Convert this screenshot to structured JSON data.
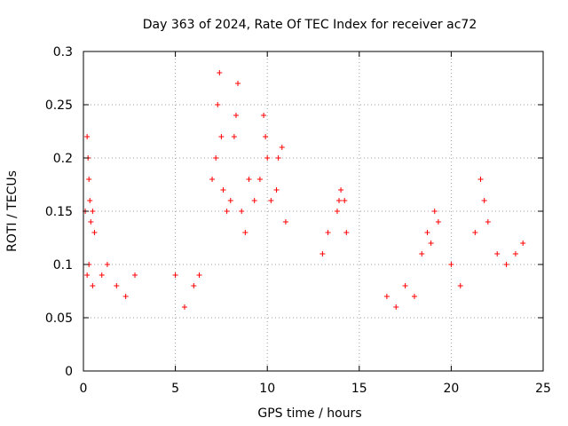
{
  "chart_data": {
    "type": "scatter",
    "title": "Day 363 of 2024, Rate Of TEC Index for receiver ac72",
    "xlabel": "GPS time / hours",
    "ylabel": "ROTI / TECUs",
    "xlim": [
      0,
      25
    ],
    "ylim": [
      0,
      0.3
    ],
    "x_ticks": [
      0,
      5,
      10,
      15,
      20,
      25
    ],
    "y_ticks": [
      0,
      0.05,
      0.1,
      0.15,
      0.2,
      0.25,
      0.3
    ],
    "x_tick_labels": [
      "0",
      "5",
      "10",
      "15",
      "20",
      "25"
    ],
    "y_tick_labels": [
      "0",
      "0.05",
      "0.1",
      "0.15",
      "0.2",
      "0.25",
      "0.3"
    ],
    "grid": true,
    "marker": "plus",
    "color": "#ff0000",
    "series": [
      {
        "points": [
          [
            0.1,
            0.15
          ],
          [
            0.2,
            0.22
          ],
          [
            0.25,
            0.2
          ],
          [
            0.3,
            0.18
          ],
          [
            0.35,
            0.16
          ],
          [
            0.4,
            0.14
          ],
          [
            0.5,
            0.15
          ],
          [
            0.6,
            0.13
          ],
          [
            0.3,
            0.1
          ],
          [
            0.2,
            0.09
          ],
          [
            0.5,
            0.08
          ],
          [
            1.0,
            0.09
          ],
          [
            1.3,
            0.1
          ],
          [
            1.8,
            0.08
          ],
          [
            2.3,
            0.07
          ],
          [
            2.8,
            0.09
          ],
          [
            5.0,
            0.09
          ],
          [
            5.5,
            0.06
          ],
          [
            6.0,
            0.08
          ],
          [
            6.3,
            0.09
          ],
          [
            7.0,
            0.18
          ],
          [
            7.2,
            0.2
          ],
          [
            7.3,
            0.25
          ],
          [
            7.4,
            0.28
          ],
          [
            7.5,
            0.22
          ],
          [
            7.6,
            0.17
          ],
          [
            7.8,
            0.15
          ],
          [
            8.0,
            0.16
          ],
          [
            8.2,
            0.22
          ],
          [
            8.3,
            0.24
          ],
          [
            8.4,
            0.27
          ],
          [
            8.6,
            0.15
          ],
          [
            8.8,
            0.13
          ],
          [
            9.0,
            0.18
          ],
          [
            9.3,
            0.16
          ],
          [
            9.6,
            0.18
          ],
          [
            9.8,
            0.24
          ],
          [
            9.9,
            0.22
          ],
          [
            10.0,
            0.2
          ],
          [
            10.2,
            0.16
          ],
          [
            10.5,
            0.17
          ],
          [
            10.6,
            0.2
          ],
          [
            10.8,
            0.21
          ],
          [
            11.0,
            0.14
          ],
          [
            13.0,
            0.11
          ],
          [
            13.3,
            0.13
          ],
          [
            13.8,
            0.15
          ],
          [
            13.9,
            0.16
          ],
          [
            14.0,
            0.17
          ],
          [
            14.2,
            0.16
          ],
          [
            14.3,
            0.13
          ],
          [
            16.5,
            0.07
          ],
          [
            17.0,
            0.06
          ],
          [
            17.5,
            0.08
          ],
          [
            18.0,
            0.07
          ],
          [
            18.4,
            0.11
          ],
          [
            18.7,
            0.13
          ],
          [
            18.9,
            0.12
          ],
          [
            19.1,
            0.15
          ],
          [
            19.3,
            0.14
          ],
          [
            20.0,
            0.1
          ],
          [
            20.5,
            0.08
          ],
          [
            21.3,
            0.13
          ],
          [
            21.6,
            0.18
          ],
          [
            21.8,
            0.16
          ],
          [
            22.0,
            0.14
          ],
          [
            22.5,
            0.11
          ],
          [
            23.0,
            0.1
          ],
          [
            23.5,
            0.11
          ],
          [
            23.9,
            0.12
          ]
        ]
      }
    ]
  }
}
